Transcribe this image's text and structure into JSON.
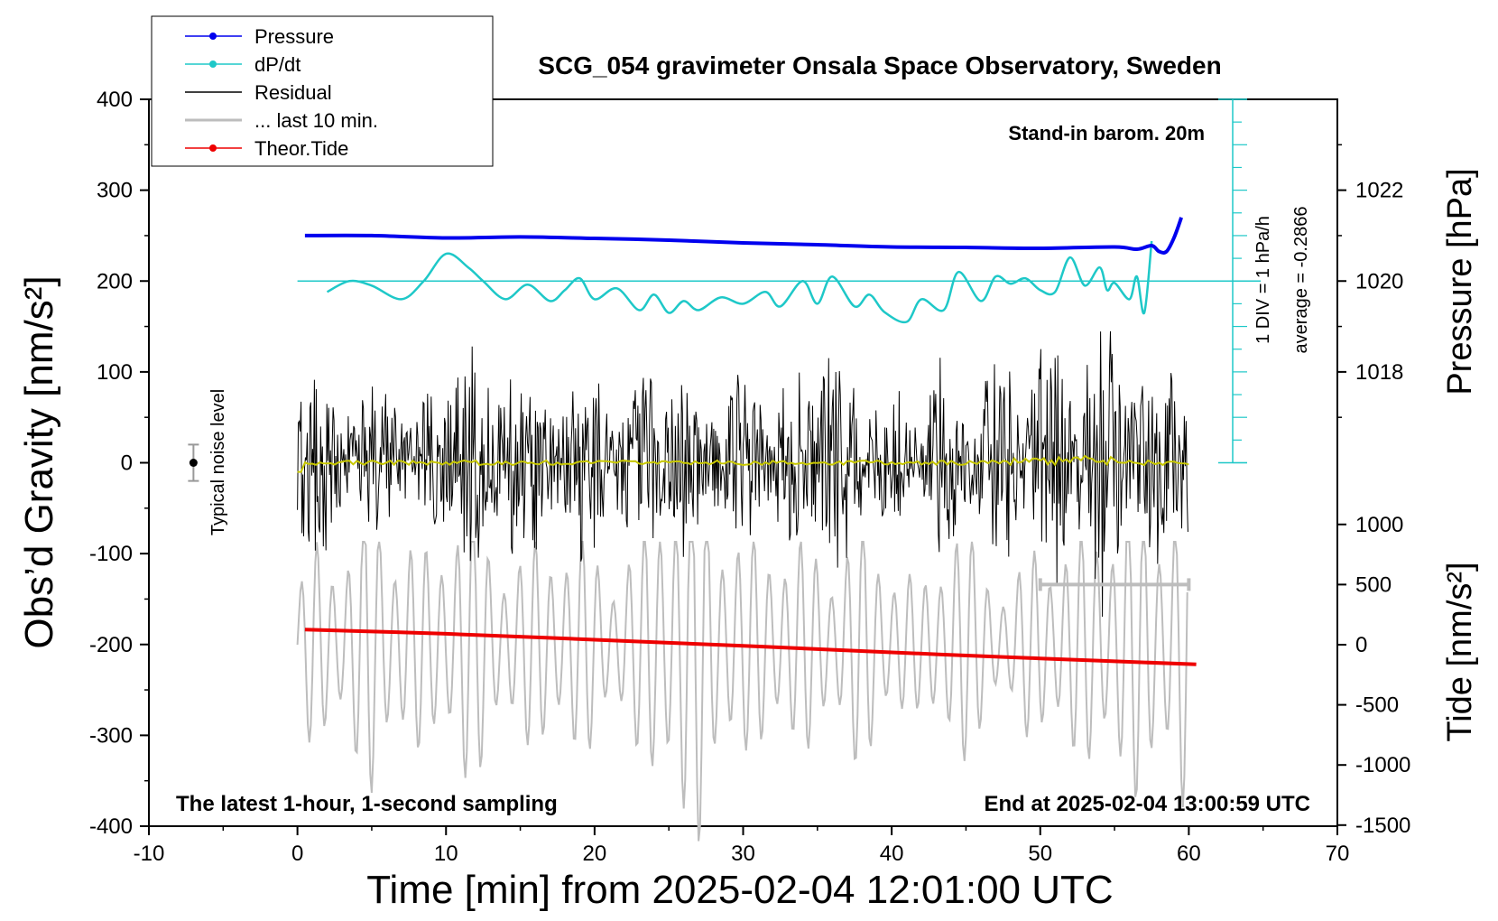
{
  "chart_data": {
    "type": "line",
    "title": "SCG_054 gravimeter Onsala Space Observatory, Sweden",
    "xlabel": "Time [min] from 2025-02-04 12:01:00 UTC",
    "xlim": [
      -10,
      70
    ],
    "xticks": [
      -10,
      0,
      10,
      20,
      30,
      40,
      50,
      60,
      70
    ],
    "ylabel_left": "Obs’d Gravity [nm/s²]",
    "ylim_left": [
      -400,
      400
    ],
    "yticks_left": [
      400,
      300,
      200,
      100,
      0,
      -100,
      -200,
      -300,
      -400
    ],
    "ylabel_pressure": "Pressure [hPa]",
    "pressure_ticks": [
      1022,
      1020,
      1018
    ],
    "ylabel_tide": "Tide [nm/s²]",
    "tide_ticks": [
      1000,
      500,
      0,
      -500,
      -1000,
      -1500
    ],
    "annotations": {
      "barometer": "Stand-in barom. 20m",
      "latest": "The latest 1-hour, 1-second sampling",
      "end": "End at 2025-02-04 13:00:59 UTC",
      "noise": "Typical noise level",
      "dpdt_scale": "1 DIV = 1 hPa/h",
      "dpdt_average": "average = -0.2866"
    },
    "legend": [
      {
        "label": "Pressure",
        "color": "#0000ee",
        "marker": "dot"
      },
      {
        "label": "dP/dt",
        "color": "#1ec8c8",
        "marker": "dot"
      },
      {
        "label": "Residual",
        "color": "#000000",
        "marker": "none"
      },
      {
        "label": "... last 10 min.",
        "color": "#bdbdbd",
        "marker": "none"
      },
      {
        "label": "Theor.Tide",
        "color": "#ee0000",
        "marker": "dot"
      }
    ],
    "series": {
      "pressure_hpa": {
        "x": [
          0.5,
          5,
          10,
          15,
          20,
          25,
          30,
          35,
          40,
          45,
          50,
          55,
          56.5,
          57.5,
          58,
          58.5,
          59,
          59.5
        ],
        "y": [
          1021.0,
          1021.0,
          1020.95,
          1020.97,
          1020.94,
          1020.9,
          1020.84,
          1020.8,
          1020.75,
          1020.74,
          1020.72,
          1020.75,
          1020.7,
          1020.78,
          1020.65,
          1020.65,
          1020.95,
          1021.4
        ]
      },
      "dpdt_plot_nm": {
        "x": [
          2,
          3.5,
          5,
          7,
          8.5,
          10,
          11.5,
          12.5,
          14,
          15.5,
          17,
          18,
          19,
          20,
          21.5,
          23,
          24,
          25,
          26,
          27,
          28.5,
          30,
          31.5,
          32.5,
          34,
          35,
          36,
          37.5,
          38.5,
          39.5,
          41,
          42,
          43.5,
          44.5,
          46,
          47,
          48,
          49,
          50,
          51,
          52,
          53,
          54,
          54.5,
          55,
          56,
          56.5,
          57,
          57.5
        ],
        "y": [
          188,
          200,
          195,
          180,
          200,
          230,
          215,
          200,
          180,
          196,
          178,
          190,
          203,
          180,
          192,
          168,
          185,
          165,
          178,
          168,
          182,
          175,
          188,
          172,
          200,
          175,
          205,
          172,
          185,
          166,
          155,
          180,
          168,
          210,
          178,
          205,
          197,
          203,
          190,
          188,
          226,
          195,
          215,
          190,
          198,
          180,
          205,
          165,
          244
        ]
      },
      "theor_tide_nm_s2": {
        "x": [
          0.5,
          10,
          20,
          30,
          40,
          50,
          60.5
        ],
        "y": [
          126,
          91,
          41,
          -9,
          -64,
          -114,
          -164
        ]
      },
      "residual_envelope_nm": {
        "x": [
          0,
          1,
          3,
          5,
          7,
          9,
          10,
          11,
          13,
          14,
          15,
          17,
          19,
          20,
          22,
          24,
          26,
          28,
          30,
          32,
          34,
          36,
          38,
          40,
          42,
          43,
          45,
          47,
          49,
          51,
          53,
          54,
          55,
          57,
          59,
          60
        ],
        "amplitude": [
          160,
          130,
          90,
          95,
          80,
          90,
          100,
          160,
          90,
          150,
          130,
          90,
          110,
          150,
          70,
          130,
          120,
          90,
          120,
          80,
          110,
          150,
          80,
          90,
          70,
          130,
          80,
          120,
          110,
          160,
          120,
          180,
          150,
          100,
          150,
          110
        ]
      },
      "last10min_tide_nm_s2": {
        "x": [
          0,
          1,
          3,
          5,
          7,
          9,
          11,
          13,
          15,
          17,
          19,
          21,
          23,
          25,
          26,
          27,
          28,
          30,
          32,
          34,
          36,
          38,
          40,
          42,
          44,
          46,
          48,
          50,
          52,
          54,
          56,
          58,
          60
        ],
        "amplitude": [
          500,
          900,
          900,
          1300,
          1000,
          800,
          1400,
          900,
          800,
          1000,
          1000,
          700,
          900,
          1700,
          1700,
          1700,
          1400,
          900,
          1000,
          900,
          800,
          1100,
          800,
          500,
          1200,
          800,
          500,
          1000,
          900,
          1200,
          1300,
          1300,
          1500
        ]
      },
      "noise_level_nm": {
        "x": -7,
        "y": 0,
        "range": [
          -20,
          20
        ]
      },
      "last10min_bar": {
        "x_start": 50,
        "x_end": 60,
        "tide": 500
      }
    }
  }
}
